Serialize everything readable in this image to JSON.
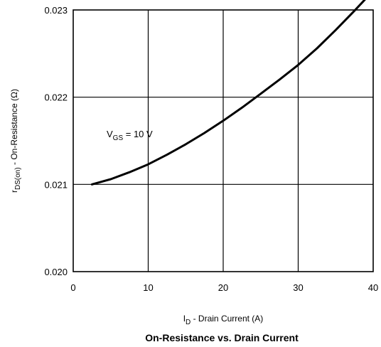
{
  "chart_data": {
    "type": "line",
    "title": "On-Resistance vs. Drain Current",
    "xlabel": {
      "main": "I",
      "sub": "D",
      "rest": " - Drain Current (A)"
    },
    "ylabel": {
      "main": "r",
      "sub": "DS(on)",
      "rest": " - On-Resistance (Ω)"
    },
    "xlim": [
      0,
      40
    ],
    "ylim": [
      0.02,
      0.023
    ],
    "x_ticks": [
      "0",
      "10",
      "20",
      "30",
      "40"
    ],
    "y_ticks": [
      "0.020",
      "0.021",
      "0.022",
      "0.023"
    ],
    "grid": true,
    "annotation": {
      "main": "V",
      "sub": "GS",
      "rest": " = 10 V"
    },
    "series": [
      {
        "x": [
          2.5,
          5,
          7.5,
          10,
          12.5,
          15,
          17.5,
          20,
          22.5,
          25,
          27.5,
          30,
          32.5,
          35,
          37.5,
          40
        ],
        "y": [
          0.021,
          0.02106,
          0.02114,
          0.02123,
          0.02134,
          0.02146,
          0.02159,
          0.02173,
          0.02188,
          0.02204,
          0.0222,
          0.02237,
          0.02256,
          0.02277,
          0.02299,
          0.02322
        ]
      }
    ]
  }
}
